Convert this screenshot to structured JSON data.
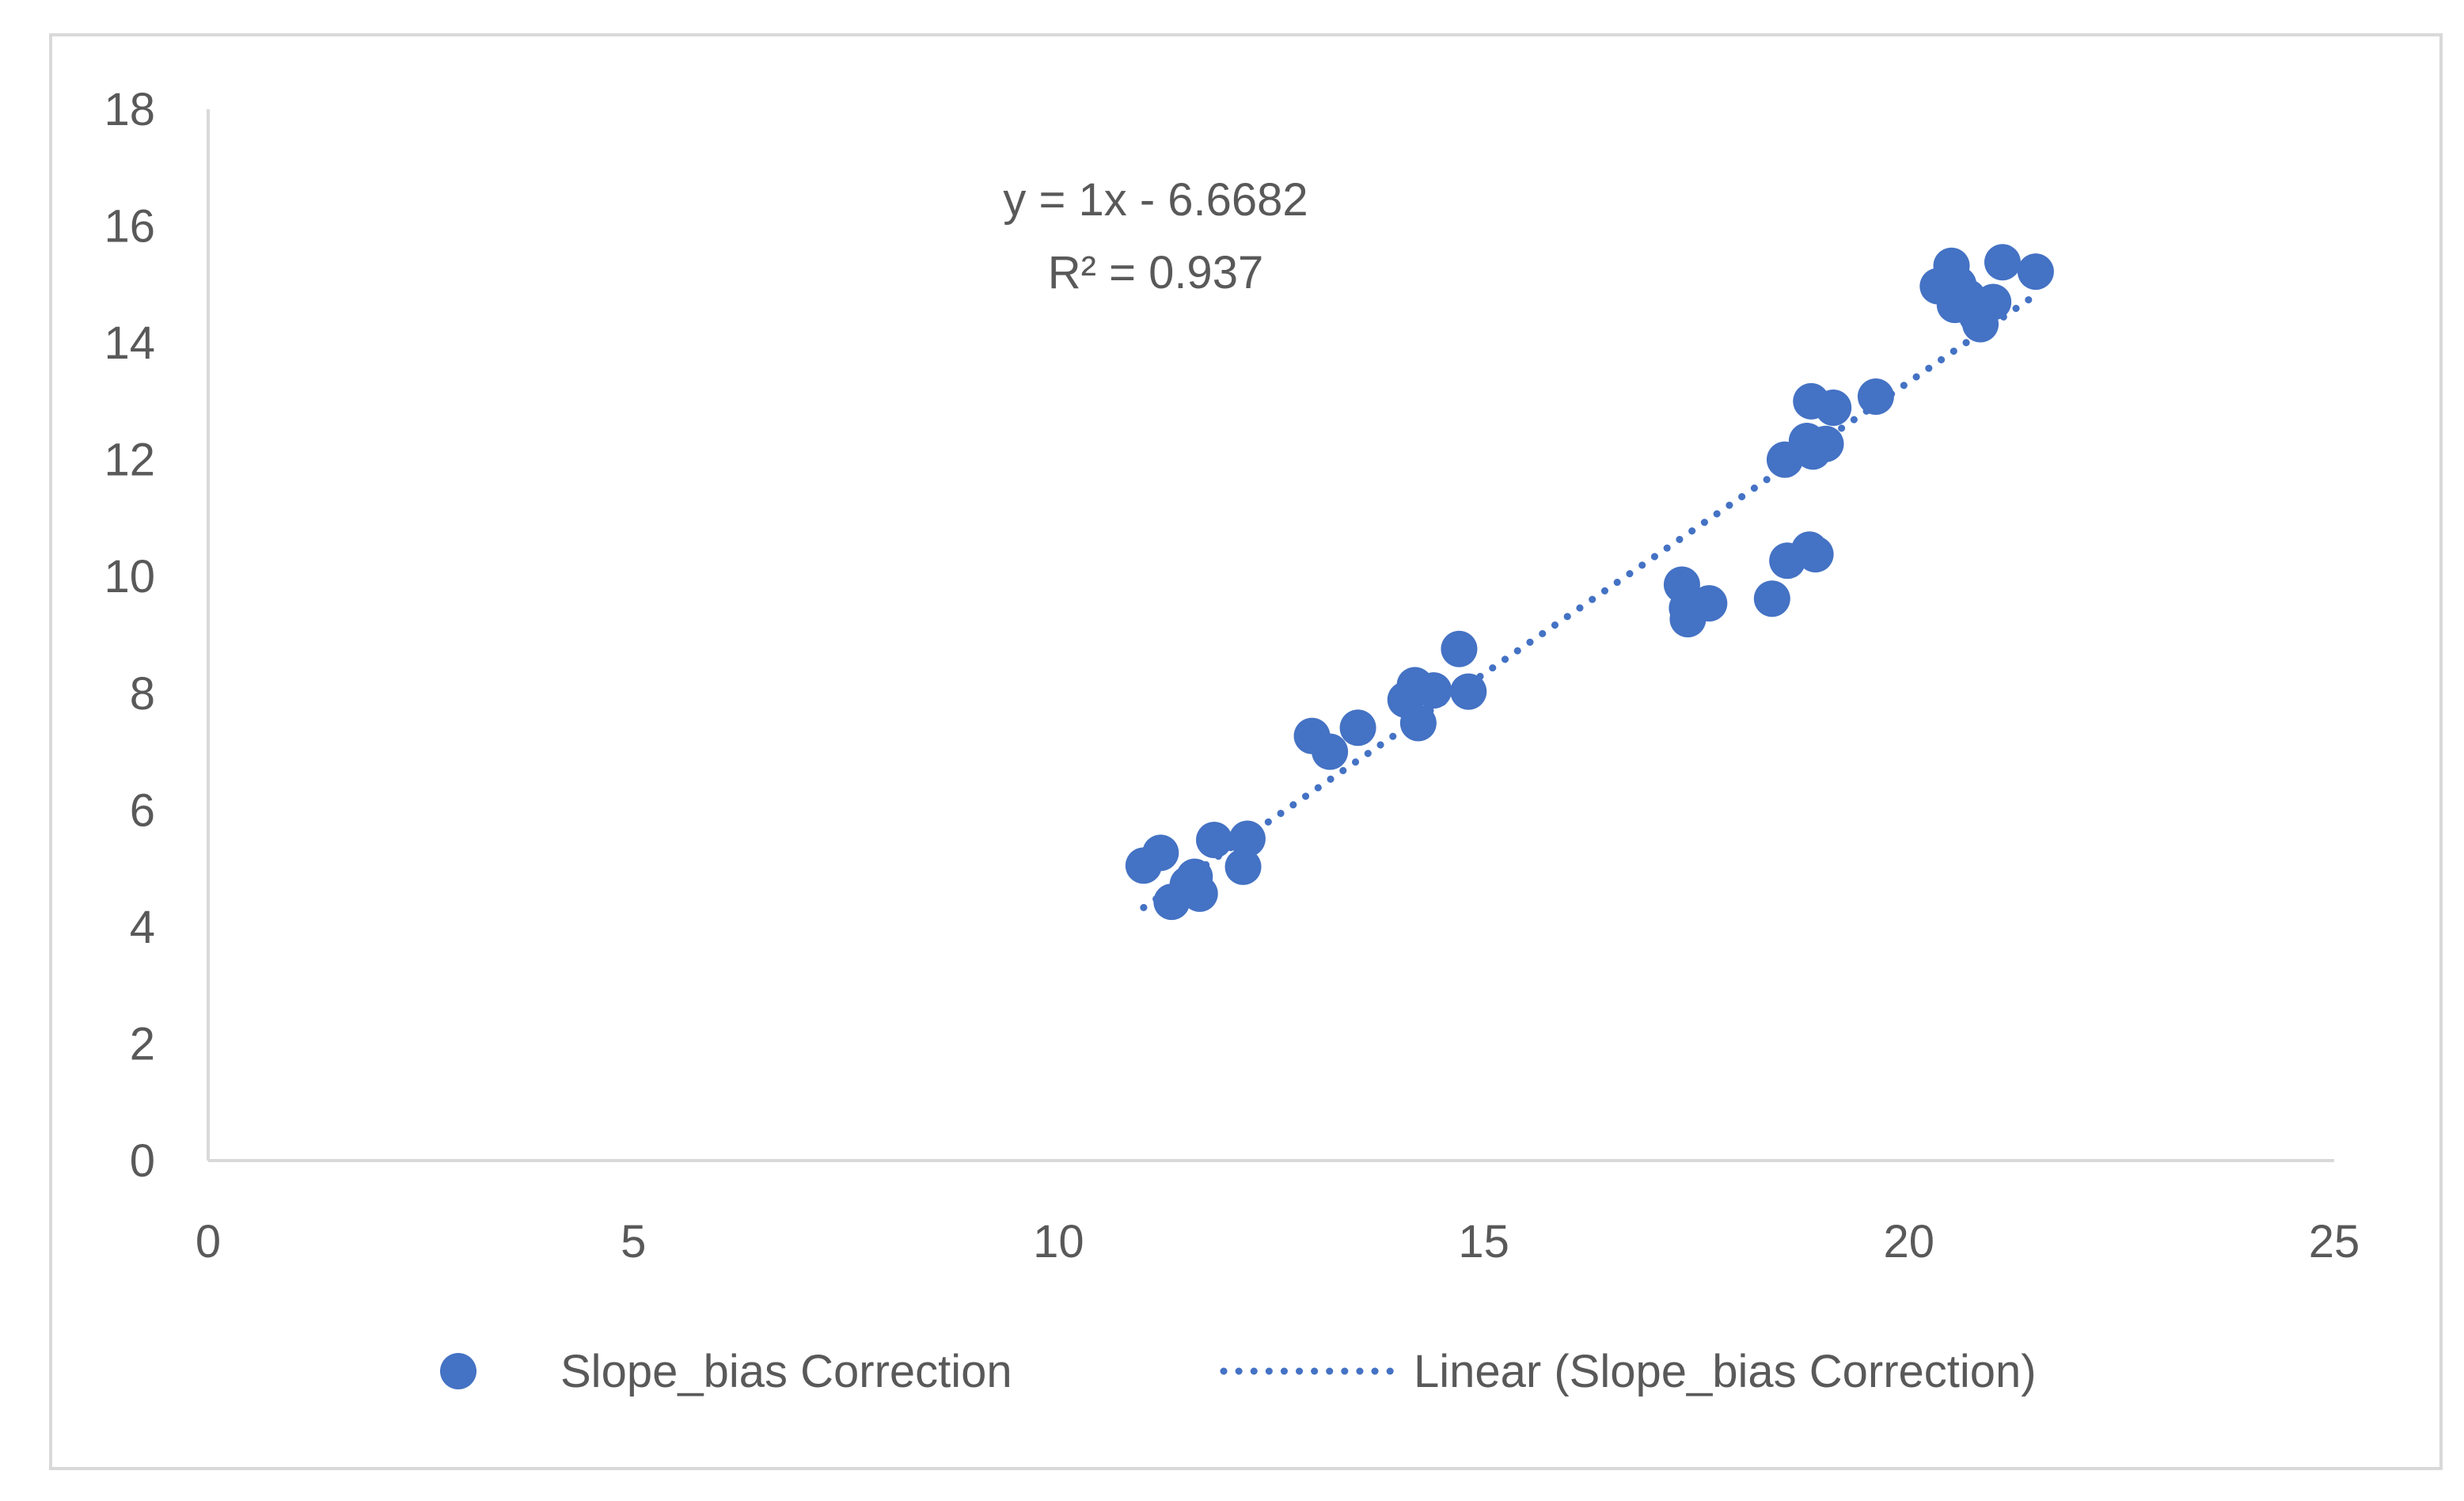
{
  "chart_data": {
    "type": "scatter",
    "title": "",
    "xlabel": "",
    "ylabel": "",
    "xlim": [
      0,
      25
    ],
    "ylim": [
      0,
      18
    ],
    "x_ticks": [
      0,
      5,
      10,
      15,
      20,
      25
    ],
    "y_ticks": [
      0,
      2,
      4,
      6,
      8,
      10,
      12,
      14,
      16,
      18
    ],
    "grid": false,
    "legend_position": "bottom",
    "marker_color": "#4472C4",
    "series": [
      {
        "name": "Slope_bias Correction",
        "points": [
          [
            11.0,
            5.05
          ],
          [
            11.2,
            5.27
          ],
          [
            11.33,
            4.43
          ],
          [
            11.52,
            4.73
          ],
          [
            11.6,
            4.86
          ],
          [
            11.66,
            4.57
          ],
          [
            11.83,
            5.49
          ],
          [
            12.17,
            5.03
          ],
          [
            12.22,
            5.51
          ],
          [
            12.98,
            7.27
          ],
          [
            13.19,
            7.0
          ],
          [
            13.52,
            7.41
          ],
          [
            14.08,
            7.89
          ],
          [
            14.19,
            8.14
          ],
          [
            14.23,
            7.49
          ],
          [
            14.41,
            8.05
          ],
          [
            14.71,
            8.76
          ],
          [
            14.82,
            8.03
          ],
          [
            17.33,
            9.86
          ],
          [
            17.39,
            9.46
          ],
          [
            17.4,
            9.27
          ],
          [
            17.65,
            9.54
          ],
          [
            18.39,
            9.62
          ],
          [
            18.57,
            10.27
          ],
          [
            18.83,
            10.46
          ],
          [
            18.9,
            10.38
          ],
          [
            18.54,
            12.0
          ],
          [
            18.8,
            12.32
          ],
          [
            18.87,
            12.14
          ],
          [
            19.02,
            12.27
          ],
          [
            18.85,
            13.0
          ],
          [
            19.11,
            12.89
          ],
          [
            19.61,
            13.08
          ],
          [
            20.34,
            14.97
          ],
          [
            20.5,
            15.32
          ],
          [
            20.58,
            15.0
          ],
          [
            20.54,
            14.65
          ],
          [
            20.69,
            14.78
          ],
          [
            20.8,
            14.46
          ],
          [
            20.84,
            14.32
          ],
          [
            20.99,
            14.7
          ],
          [
            21.1,
            15.38
          ],
          [
            21.49,
            15.22
          ]
        ]
      }
    ],
    "trendline": {
      "name": "Linear (Slope_bias Correction)",
      "slope": 1,
      "intercept": -6.6682,
      "x_range": [
        11.0,
        21.49
      ],
      "equation_label": "y = 1x - 6.6682",
      "r2_label": "R² = 0.937"
    }
  }
}
